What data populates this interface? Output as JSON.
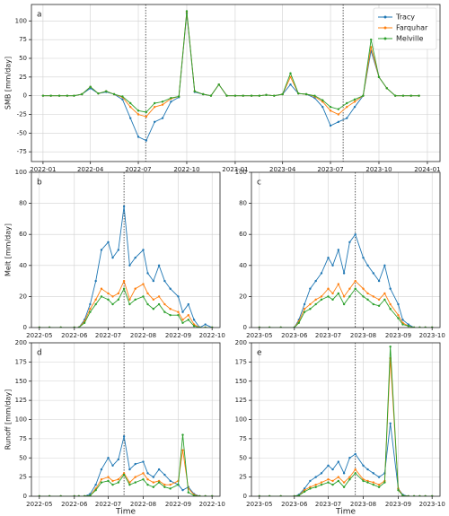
{
  "chart_data": [
    {
      "type": "line",
      "label": "a",
      "ylabel": "SMB [mm/day]",
      "x": [
        "2022-01-01",
        "2022-01-16",
        "2022-02-01",
        "2022-02-16",
        "2022-03-01",
        "2022-03-16",
        "2022-04-01",
        "2022-04-16",
        "2022-05-01",
        "2022-05-16",
        "2022-06-01",
        "2022-06-16",
        "2022-07-01",
        "2022-07-16",
        "2022-08-01",
        "2022-08-16",
        "2022-09-01",
        "2022-09-16",
        "2022-10-01",
        "2022-10-16",
        "2022-11-01",
        "2022-11-16",
        "2022-12-01",
        "2022-12-16",
        "2023-01-01",
        "2023-01-16",
        "2023-02-01",
        "2023-02-16",
        "2023-03-01",
        "2023-03-16",
        "2023-04-01",
        "2023-04-16",
        "2023-05-01",
        "2023-05-16",
        "2023-06-01",
        "2023-06-16",
        "2023-07-01",
        "2023-07-16",
        "2023-08-01",
        "2023-08-16",
        "2023-09-01",
        "2023-09-16",
        "2023-10-01",
        "2023-10-16",
        "2023-11-01",
        "2023-11-16",
        "2023-12-01",
        "2023-12-16"
      ],
      "series": [
        {
          "name": "Tracy",
          "color": "#1f77b4",
          "values": [
            0,
            0,
            0,
            0,
            0,
            2,
            10,
            3,
            5,
            2,
            -5,
            -30,
            -55,
            -60,
            -35,
            -30,
            -8,
            -2,
            110,
            5,
            2,
            0,
            15,
            0,
            0,
            0,
            0,
            0,
            1,
            0,
            2,
            15,
            3,
            2,
            -3,
            -15,
            -40,
            -35,
            -30,
            -15,
            0,
            60,
            25,
            10,
            0,
            0,
            0,
            0
          ]
        },
        {
          "name": "Farquhar",
          "color": "#ff7f0e",
          "values": [
            0,
            0,
            0,
            0,
            0,
            2,
            12,
            3,
            6,
            2,
            -2,
            -15,
            -25,
            -28,
            -15,
            -12,
            -4,
            -1,
            112,
            6,
            2,
            0,
            15,
            0,
            0,
            0,
            0,
            0,
            1,
            0,
            2,
            25,
            3,
            2,
            -1,
            -8,
            -20,
            -25,
            -15,
            -8,
            0,
            65,
            25,
            10,
            0,
            0,
            0,
            0
          ]
        },
        {
          "name": "Melville",
          "color": "#2ca02c",
          "values": [
            0,
            0,
            0,
            0,
            0,
            2,
            12,
            3,
            6,
            2,
            -1,
            -10,
            -20,
            -22,
            -10,
            -8,
            -3,
            -1,
            113,
            6,
            2,
            0,
            15,
            0,
            0,
            0,
            0,
            0,
            1,
            0,
            2,
            30,
            3,
            2,
            0,
            -6,
            -15,
            -18,
            -10,
            -5,
            0,
            75,
            25,
            10,
            0,
            0,
            0,
            0
          ]
        }
      ],
      "xlim": [
        "2021-12-10",
        "2024-01-25"
      ],
      "xticks": [
        {
          "value": "2022-01-01",
          "label": "2022-01"
        },
        {
          "value": "2022-04-01",
          "label": "2022-04"
        },
        {
          "value": "2022-07-01",
          "label": "2022-07"
        },
        {
          "value": "2022-10-01",
          "label": "2022-10"
        },
        {
          "value": "2023-01-01",
          "label": "2023-01"
        },
        {
          "value": "2023-04-01",
          "label": "2023-04"
        },
        {
          "value": "2023-07-01",
          "label": "2023-07"
        },
        {
          "value": "2023-10-01",
          "label": "2023-10"
        },
        {
          "value": "2024-01-01",
          "label": "2024-01"
        }
      ],
      "ylim": [
        -88,
        122
      ],
      "yticks": [
        -75,
        -50,
        -25,
        0,
        25,
        50,
        75,
        100
      ],
      "grid": true,
      "vlines": [
        "2022-07-15",
        "2023-07-25"
      ],
      "legend": "upper right"
    },
    {
      "type": "line",
      "label": "b",
      "ylabel": "Melt [mm/day]",
      "x": [
        "2022-05-01",
        "2022-05-10",
        "2022-05-20",
        "2022-06-01",
        "2022-06-05",
        "2022-06-10",
        "2022-06-15",
        "2022-06-20",
        "2022-06-25",
        "2022-07-01",
        "2022-07-05",
        "2022-07-10",
        "2022-07-15",
        "2022-07-20",
        "2022-07-25",
        "2022-08-01",
        "2022-08-05",
        "2022-08-10",
        "2022-08-15",
        "2022-08-20",
        "2022-08-25",
        "2022-09-01",
        "2022-09-05",
        "2022-09-10",
        "2022-09-15",
        "2022-09-20",
        "2022-09-25",
        "2022-10-01"
      ],
      "series": [
        {
          "color": "#1f77b4",
          "values": [
            0,
            0,
            0,
            0,
            0,
            5,
            15,
            30,
            50,
            55,
            45,
            50,
            78,
            40,
            45,
            50,
            35,
            30,
            40,
            30,
            25,
            20,
            10,
            15,
            5,
            0,
            2,
            0
          ]
        },
        {
          "color": "#ff7f0e",
          "values": [
            0,
            0,
            0,
            0,
            0,
            4,
            12,
            18,
            25,
            22,
            20,
            22,
            30,
            18,
            25,
            28,
            22,
            18,
            20,
            15,
            12,
            10,
            5,
            8,
            2,
            0,
            0,
            0
          ]
        },
        {
          "color": "#2ca02c",
          "values": [
            0,
            0,
            0,
            0,
            0,
            3,
            10,
            15,
            20,
            18,
            15,
            18,
            25,
            15,
            18,
            20,
            15,
            12,
            15,
            10,
            8,
            8,
            3,
            5,
            1,
            0,
            0,
            0
          ]
        }
      ],
      "xlim": [
        "2022-04-24",
        "2022-10-08"
      ],
      "xticks": [
        {
          "value": "2022-05-01",
          "label": "2022-05"
        },
        {
          "value": "2022-06-01",
          "label": "2022-06"
        },
        {
          "value": "2022-07-01",
          "label": "2022-07"
        },
        {
          "value": "2022-08-01",
          "label": "2022-08"
        },
        {
          "value": "2022-09-01",
          "label": "2022-09"
        },
        {
          "value": "2022-10-01",
          "label": "2022-10"
        }
      ],
      "ylim": [
        0,
        100
      ],
      "yticks": [
        0,
        20,
        40,
        60,
        80,
        100
      ],
      "grid": true,
      "vlines": [
        "2022-07-15"
      ]
    },
    {
      "type": "line",
      "label": "c",
      "x": [
        "2023-05-01",
        "2023-05-10",
        "2023-05-20",
        "2023-06-01",
        "2023-06-05",
        "2023-06-10",
        "2023-06-15",
        "2023-06-20",
        "2023-06-25",
        "2023-07-01",
        "2023-07-05",
        "2023-07-10",
        "2023-07-15",
        "2023-07-20",
        "2023-07-25",
        "2023-08-01",
        "2023-08-05",
        "2023-08-10",
        "2023-08-15",
        "2023-08-20",
        "2023-08-25",
        "2023-09-01",
        "2023-09-05",
        "2023-09-10",
        "2023-09-15",
        "2023-09-20",
        "2023-09-25",
        "2023-10-01"
      ],
      "series": [
        {
          "color": "#1f77b4",
          "values": [
            0,
            0,
            0,
            0,
            5,
            15,
            25,
            30,
            35,
            45,
            40,
            50,
            35,
            55,
            60,
            45,
            40,
            35,
            30,
            40,
            25,
            15,
            5,
            2,
            0,
            0,
            0,
            0
          ]
        },
        {
          "color": "#ff7f0e",
          "values": [
            0,
            0,
            0,
            0,
            4,
            12,
            15,
            18,
            20,
            25,
            22,
            28,
            20,
            25,
            30,
            25,
            22,
            20,
            18,
            22,
            15,
            8,
            3,
            1,
            0,
            0,
            0,
            0
          ]
        },
        {
          "color": "#2ca02c",
          "values": [
            0,
            0,
            0,
            0,
            3,
            10,
            12,
            15,
            18,
            20,
            18,
            22,
            15,
            20,
            25,
            20,
            18,
            15,
            14,
            18,
            12,
            6,
            2,
            1,
            0,
            0,
            0,
            0
          ]
        }
      ],
      "xlim": [
        "2023-04-24",
        "2023-10-08"
      ],
      "xticks": [
        {
          "value": "2023-05-01",
          "label": "2023-05"
        },
        {
          "value": "2023-06-01",
          "label": "2023-06"
        },
        {
          "value": "2023-07-01",
          "label": "2023-07"
        },
        {
          "value": "2023-08-01",
          "label": "2023-08"
        },
        {
          "value": "2023-09-01",
          "label": "2023-09"
        },
        {
          "value": "2023-10-01",
          "label": "2023-10"
        }
      ],
      "ylim": [
        0,
        100
      ],
      "yticks": [
        0,
        20,
        40,
        60,
        80,
        100
      ],
      "grid": true,
      "vlines": [
        "2023-07-25"
      ]
    },
    {
      "type": "line",
      "label": "d",
      "ylabel": "Runoff [mm/day]",
      "xlabel": "Time",
      "x": [
        "2022-05-01",
        "2022-05-10",
        "2022-05-20",
        "2022-06-01",
        "2022-06-05",
        "2022-06-10",
        "2022-06-15",
        "2022-06-20",
        "2022-06-25",
        "2022-07-01",
        "2022-07-05",
        "2022-07-10",
        "2022-07-15",
        "2022-07-20",
        "2022-07-25",
        "2022-08-01",
        "2022-08-05",
        "2022-08-10",
        "2022-08-15",
        "2022-08-20",
        "2022-08-25",
        "2022-09-01",
        "2022-09-05",
        "2022-09-10",
        "2022-09-15",
        "2022-09-20",
        "2022-09-25",
        "2022-10-01"
      ],
      "series": [
        {
          "color": "#1f77b4",
          "values": [
            0,
            0,
            0,
            0,
            0,
            0,
            3,
            15,
            35,
            50,
            40,
            48,
            78,
            35,
            42,
            45,
            30,
            25,
            35,
            28,
            20,
            15,
            8,
            12,
            3,
            0,
            0,
            0
          ]
        },
        {
          "color": "#ff7f0e",
          "values": [
            0,
            0,
            0,
            0,
            0,
            0,
            1,
            10,
            22,
            25,
            20,
            22,
            30,
            18,
            25,
            30,
            22,
            18,
            20,
            15,
            15,
            20,
            60,
            10,
            2,
            0,
            0,
            0
          ]
        },
        {
          "color": "#2ca02c",
          "values": [
            0,
            0,
            0,
            0,
            0,
            0,
            1,
            8,
            18,
            20,
            15,
            18,
            28,
            15,
            18,
            22,
            15,
            12,
            18,
            12,
            10,
            15,
            80,
            5,
            1,
            0,
            0,
            0
          ]
        }
      ],
      "xlim": [
        "2022-04-24",
        "2022-10-08"
      ],
      "xticks": [
        {
          "value": "2022-05-01",
          "label": "2022-05"
        },
        {
          "value": "2022-06-01",
          "label": "2022-06"
        },
        {
          "value": "2022-07-01",
          "label": "2022-07"
        },
        {
          "value": "2022-08-01",
          "label": "2022-08"
        },
        {
          "value": "2022-09-01",
          "label": "2022-09"
        },
        {
          "value": "2022-10-01",
          "label": "2022-10"
        }
      ],
      "ylim": [
        0,
        200
      ],
      "yticks": [
        0,
        25,
        50,
        75,
        100,
        125,
        150,
        175,
        200
      ],
      "grid": true,
      "vlines": [
        "2022-07-15"
      ]
    },
    {
      "type": "line",
      "label": "e",
      "xlabel": "Time",
      "x": [
        "2023-05-01",
        "2023-05-10",
        "2023-05-20",
        "2023-06-01",
        "2023-06-05",
        "2023-06-10",
        "2023-06-15",
        "2023-06-20",
        "2023-06-25",
        "2023-07-01",
        "2023-07-05",
        "2023-07-10",
        "2023-07-15",
        "2023-07-20",
        "2023-07-25",
        "2023-08-01",
        "2023-08-05",
        "2023-08-10",
        "2023-08-15",
        "2023-08-20",
        "2023-08-25",
        "2023-09-01",
        "2023-09-05",
        "2023-09-10",
        "2023-09-15",
        "2023-09-20",
        "2023-09-25",
        "2023-10-01"
      ],
      "series": [
        {
          "color": "#1f77b4",
          "values": [
            0,
            0,
            0,
            0,
            2,
            10,
            20,
            25,
            30,
            40,
            35,
            45,
            30,
            50,
            55,
            40,
            35,
            30,
            25,
            30,
            95,
            10,
            2,
            0,
            0,
            0,
            0,
            0
          ]
        },
        {
          "color": "#ff7f0e",
          "values": [
            0,
            0,
            0,
            0,
            1,
            8,
            12,
            15,
            18,
            22,
            20,
            25,
            18,
            25,
            35,
            22,
            20,
            18,
            15,
            20,
            180,
            10,
            1,
            0,
            0,
            0,
            0,
            0
          ]
        },
        {
          "color": "#2ca02c",
          "values": [
            0,
            0,
            0,
            0,
            1,
            6,
            10,
            12,
            15,
            18,
            15,
            20,
            12,
            22,
            30,
            20,
            18,
            15,
            12,
            18,
            195,
            8,
            1,
            0,
            0,
            0,
            0,
            0
          ]
        }
      ],
      "xlim": [
        "2023-04-24",
        "2023-10-08"
      ],
      "xticks": [
        {
          "value": "2023-05-01",
          "label": "2023-05"
        },
        {
          "value": "2023-06-01",
          "label": "2023-06"
        },
        {
          "value": "2023-07-01",
          "label": "2023-07"
        },
        {
          "value": "2023-08-01",
          "label": "2023-08"
        },
        {
          "value": "2023-09-01",
          "label": "2023-09"
        },
        {
          "value": "2023-10-01",
          "label": "2023-10"
        }
      ],
      "ylim": [
        0,
        200
      ],
      "yticks": [
        0,
        25,
        50,
        75,
        100,
        125,
        150,
        175,
        200
      ],
      "grid": true,
      "vlines": [
        "2023-07-25"
      ]
    }
  ]
}
